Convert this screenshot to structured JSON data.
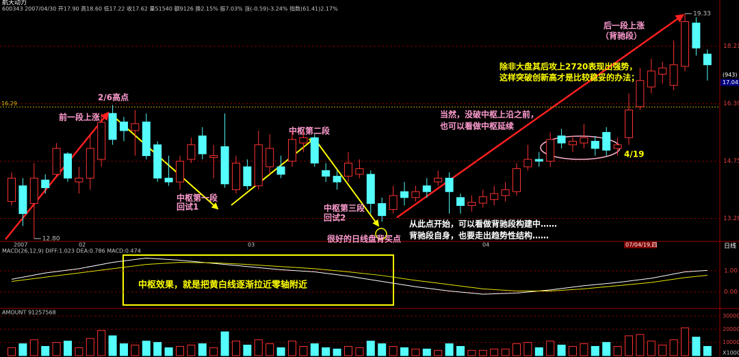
{
  "chart_data": [
    {
      "type": "candlestick",
      "title": "航天动力",
      "info": "600343 2007/04/30 开17.90 高18.60 低17.22 收17.62 量51540 额9126 换2.15% 振7.03% 涨(-0.59)-3.24% 指数(61.41)2.17%",
      "log_scale": true,
      "ylim": [
        12.75,
        19.45
      ],
      "yticks": [
        13.28,
        14.75,
        16.39,
        18.21
      ],
      "grid": true,
      "up_color": "#ff3232",
      "down_color": "#54fcfc",
      "open": [
        13.7,
        14.1,
        13.65,
        14.25,
        14.4,
        14.95,
        14.2,
        14.3,
        14.8,
        16.1,
        15.85,
        15.6,
        15.85,
        15.2,
        14.3,
        14.2,
        14.8,
        15.45,
        14.85,
        15.15,
        14.0,
        14.6,
        14.1,
        14.6,
        14.6,
        14.75,
        15.25,
        15.4,
        14.5,
        14.35,
        14.35,
        14.4,
        14.4,
        13.65,
        13.5,
        13.95,
        13.8,
        14.1,
        14.2,
        14.3,
        13.8,
        13.6,
        13.66,
        13.75,
        13.85,
        13.95,
        14.6,
        14.8,
        14.75,
        15.45,
        15.2,
        15.25,
        15.3,
        15.55,
        15.1,
        15.4,
        16.3,
        16.9,
        17.3,
        16.95,
        17.55,
        19.0,
        17.95
      ],
      "high": [
        14.45,
        14.3,
        14.7,
        14.4,
        15.25,
        15.0,
        14.6,
        15.5,
        16.1,
        16.35,
        16.0,
        16.2,
        16.1,
        15.3,
        14.9,
        14.9,
        15.4,
        15.7,
        15.2,
        16.1,
        14.9,
        14.8,
        15.6,
        15.5,
        14.9,
        15.6,
        15.6,
        15.5,
        14.7,
        14.5,
        15.0,
        14.8,
        14.5,
        13.8,
        14.1,
        14.2,
        14.1,
        14.3,
        14.5,
        14.45,
        13.9,
        13.85,
        14.0,
        14.1,
        14.2,
        14.7,
        15.2,
        15.0,
        15.55,
        15.65,
        15.45,
        15.8,
        15.45,
        15.7,
        15.4,
        16.7,
        17.5,
        17.8,
        17.7,
        18.4,
        19.33,
        19.2,
        18.1
      ],
      "low": [
        13.6,
        13.1,
        12.8,
        13.9,
        14.35,
        14.2,
        13.9,
        14.0,
        14.6,
        15.2,
        15.3,
        14.9,
        14.8,
        14.2,
        14.1,
        14.0,
        14.7,
        14.8,
        14.3,
        14.05,
        13.9,
        14.0,
        14.0,
        14.4,
        14.3,
        14.6,
        15.0,
        14.6,
        14.2,
        14.0,
        14.2,
        14.3,
        13.4,
        13.2,
        13.4,
        13.6,
        13.7,
        13.8,
        14.1,
        13.4,
        13.4,
        13.45,
        13.55,
        13.6,
        13.7,
        13.85,
        14.5,
        14.6,
        14.6,
        15.1,
        15.0,
        15.1,
        14.9,
        14.9,
        14.9,
        15.2,
        16.2,
        16.7,
        17.0,
        16.8,
        17.4,
        17.9,
        17.1
      ],
      "close": [
        14.3,
        13.4,
        14.3,
        14.05,
        15.1,
        14.3,
        14.3,
        15.1,
        15.84,
        15.35,
        15.6,
        15.8,
        14.9,
        14.3,
        14.2,
        14.75,
        15.2,
        14.95,
        14.9,
        14.15,
        14.7,
        14.1,
        15.2,
        15.1,
        14.4,
        15.35,
        15.4,
        14.7,
        14.35,
        14.2,
        14.7,
        14.55,
        13.65,
        13.35,
        13.85,
        13.8,
        13.95,
        13.95,
        14.3,
        13.95,
        13.6,
        13.68,
        13.82,
        13.9,
        14.0,
        14.55,
        14.8,
        14.75,
        15.35,
        15.25,
        15.3,
        15.4,
        15.1,
        15.05,
        15.2,
        16.2,
        17.1,
        17.4,
        17.5,
        17.6,
        19.05,
        18.15,
        17.6
      ],
      "high_label": 19.33,
      "low_label": {
        "value": 12.8,
        "label": "12.80"
      },
      "reference_level": 16.29,
      "cursor": {
        "count_label": "(943)",
        "value": 17.04
      },
      "x_labels": [
        "2007",
        "02",
        "03",
        "04",
        "07/04/19,四",
        "日线"
      ],
      "annotations": [
        "2/6高点",
        "前一段上涨",
        "中枢第一段",
        "回试1",
        "中枢第二段",
        "中枢第三段",
        "回试2",
        "很好的日线盘背买点",
        "从此点开始，可以看做背驰段构建中……",
        "背驰段自身，也要走出趋势性结构……",
        "当然，没破中枢上沿之前，",
        "也可以看做中枢延续",
        "除非大盘其后攻上2720表现出强势，",
        "这样突破创新高才是比较稳妥的办法；",
        "后一段上涨",
        "（背驰段）",
        "4/19",
        "中枢效果，就是把黄白线逐渐拉近零轴附近"
      ]
    },
    {
      "type": "line",
      "header": "MACD(26,12,9) DIFF:1.023 DEA:0.786 MACD:0.474",
      "x": [
        0,
        3,
        6,
        9,
        12,
        15,
        18,
        21,
        24,
        27,
        30,
        33,
        36,
        39,
        42,
        45,
        48,
        51,
        54,
        57,
        60,
        62
      ],
      "series": [
        {
          "name": "DIFF",
          "color": "#ffffff",
          "values": [
            0.6,
            0.9,
            1.1,
            1.4,
            1.6,
            1.5,
            1.35,
            1.2,
            1.05,
            0.95,
            0.75,
            0.5,
            0.25,
            0.05,
            -0.1,
            -0.05,
            0.1,
            0.3,
            0.45,
            0.65,
            0.95,
            1.02
          ]
        },
        {
          "name": "DEA",
          "color": "#e8e800",
          "values": [
            0.5,
            0.7,
            0.9,
            1.1,
            1.3,
            1.4,
            1.38,
            1.3,
            1.2,
            1.1,
            0.95,
            0.78,
            0.55,
            0.35,
            0.15,
            0.05,
            0.05,
            0.15,
            0.3,
            0.45,
            0.68,
            0.79
          ]
        }
      ],
      "ylim": [
        -0.58,
        2.16
      ],
      "yticks": [
        {
          "value": 0,
          "label": "0.00"
        },
        {
          "value": 1,
          "label": "1.00"
        }
      ]
    },
    {
      "type": "bar",
      "header": "AMOUNT 91257568",
      "unit_label": "X1000",
      "values": [
        60000,
        90000,
        120000,
        70000,
        100000,
        110000,
        60000,
        130000,
        190000,
        150000,
        90000,
        80000,
        110000,
        100000,
        60000,
        70000,
        80000,
        90000,
        60000,
        180000,
        110000,
        80000,
        120000,
        90000,
        60000,
        110000,
        70000,
        90000,
        60000,
        50000,
        70000,
        60000,
        110000,
        90000,
        70000,
        60000,
        50000,
        50000,
        40000,
        90000,
        70000,
        40000,
        40000,
        50000,
        50000,
        90000,
        100000,
        60000,
        110000,
        80000,
        70000,
        90000,
        70000,
        100000,
        70000,
        150000,
        160000,
        110000,
        80000,
        120000,
        210000,
        140000,
        70000
      ],
      "ylim": [
        0,
        336000
      ],
      "yticks": [
        100000,
        200000,
        300000
      ]
    }
  ]
}
